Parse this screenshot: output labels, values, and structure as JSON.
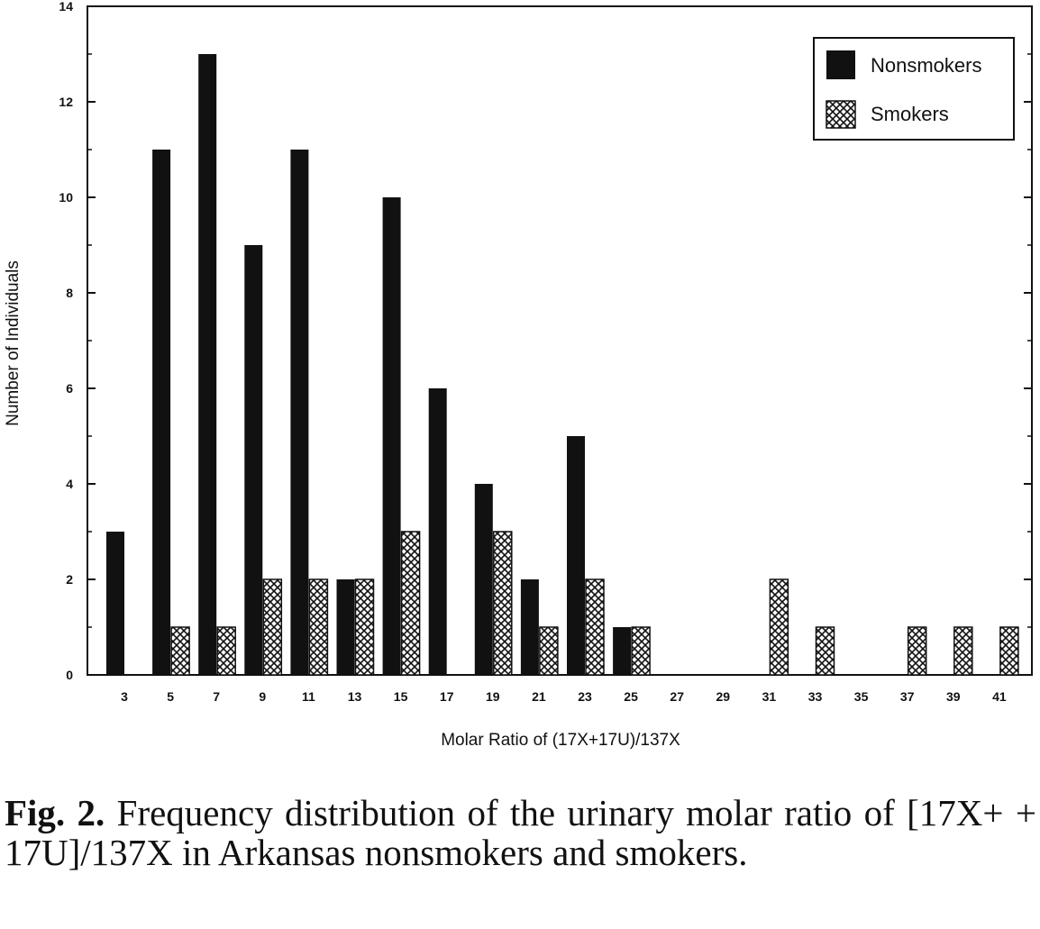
{
  "chart_data": {
    "type": "bar",
    "title": "",
    "xlabel": "Molar Ratio of (17X+17U)/137X",
    "ylabel": "Number of Individuals",
    "ylim": [
      0,
      14
    ],
    "yticks": [
      0,
      2,
      4,
      6,
      8,
      10,
      12,
      14
    ],
    "categories": [
      "3",
      "5",
      "7",
      "9",
      "11",
      "13",
      "15",
      "17",
      "19",
      "21",
      "23",
      "25",
      "27",
      "29",
      "31",
      "33",
      "35",
      "37",
      "39",
      "41"
    ],
    "series": [
      {
        "name": "Nonsmokers",
        "pattern": "solid",
        "values": [
          3,
          11,
          13,
          9,
          11,
          2,
          10,
          6,
          4,
          2,
          5,
          1,
          0,
          0,
          0,
          0,
          0,
          0,
          0,
          0
        ]
      },
      {
        "name": "Smokers",
        "pattern": "crosshatch",
        "values": [
          0,
          1,
          1,
          2,
          2,
          2,
          3,
          0,
          3,
          1,
          2,
          1,
          0,
          0,
          2,
          1,
          0,
          1,
          1,
          1
        ]
      }
    ],
    "legend": "top-right",
    "grid": false,
    "colors": {
      "nonsmokers": "#111111",
      "smokers_hatch": "#111111",
      "background": "#ffffff"
    }
  },
  "caption": {
    "label": "Fig. 2.",
    "text": "Frequency distribution of the urinary molar ratio of [17X+ + 17U]/137X in Arkansas nonsmokers and smokers."
  }
}
